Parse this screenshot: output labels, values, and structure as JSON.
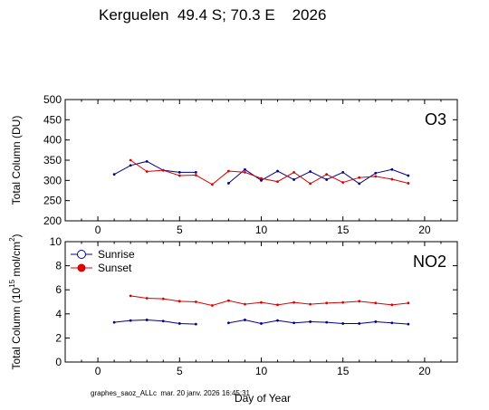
{
  "title": "Kerguelen  49.4 S; 70.3 E    2026",
  "footer": "graphes_saoz_ALLc  mar. 20 janv. 2026 16:45:31",
  "xlabel": "Day of Year",
  "colors": {
    "sunrise": "#00008b",
    "sunset": "#dc0000",
    "axis": "#000000"
  },
  "chart_data": [
    {
      "type": "line",
      "panel_label": "O3",
      "ylabel": "Total Column  (DU)",
      "xlim": [
        -2,
        22
      ],
      "ylim": [
        200,
        500
      ],
      "xticks": [
        "0",
        "5",
        "10",
        "15",
        "20"
      ],
      "yticks": [
        "200",
        "250",
        "300",
        "350",
        "400",
        "450",
        "500"
      ],
      "series": [
        {
          "key": "sunrise",
          "x": [
            1,
            2,
            3,
            4,
            5,
            6,
            8,
            9,
            10,
            11,
            12,
            13,
            14,
            15,
            16,
            17,
            18,
            19
          ],
          "y": [
            315,
            337,
            347,
            325,
            320,
            320,
            293,
            327,
            300,
            323,
            302,
            322,
            302,
            320,
            292,
            318,
            327,
            312
          ]
        },
        {
          "key": "sunset",
          "x": [
            2,
            3,
            4,
            5,
            6,
            7,
            8,
            9,
            10,
            11,
            12,
            13,
            14,
            15,
            16,
            17,
            18,
            19
          ],
          "y": [
            350,
            322,
            325,
            312,
            313,
            290,
            323,
            320,
            305,
            297,
            320,
            292,
            315,
            295,
            307,
            310,
            303,
            293
          ]
        }
      ]
    },
    {
      "type": "line",
      "panel_label": "NO2",
      "ylabel_parts": [
        "Total Column (10",
        "15",
        " mol/cm",
        "2",
        ")"
      ],
      "xlim": [
        -2,
        22
      ],
      "ylim": [
        0,
        10
      ],
      "xticks": [
        "0",
        "5",
        "10",
        "15",
        "20"
      ],
      "yticks": [
        "0",
        "2",
        "4",
        "6",
        "8",
        "10"
      ],
      "legend": {
        "position": "top-left",
        "entries": [
          {
            "key": "sunrise",
            "label": "Sunrise"
          },
          {
            "key": "sunset",
            "label": "Sunset"
          }
        ]
      },
      "series": [
        {
          "key": "sunrise",
          "x": [
            1,
            2,
            3,
            4,
            5,
            6,
            8,
            9,
            10,
            11,
            12,
            13,
            14,
            15,
            16,
            17,
            18,
            19
          ],
          "y": [
            3.3,
            3.45,
            3.5,
            3.4,
            3.2,
            3.15,
            3.25,
            3.5,
            3.2,
            3.45,
            3.25,
            3.35,
            3.3,
            3.2,
            3.2,
            3.35,
            3.25,
            3.15
          ]
        },
        {
          "key": "sunset",
          "x": [
            2,
            3,
            4,
            5,
            6,
            7,
            8,
            9,
            10,
            11,
            12,
            13,
            14,
            15,
            16,
            17,
            18,
            19
          ],
          "y": [
            5.5,
            5.3,
            5.25,
            5.05,
            5.0,
            4.7,
            5.1,
            4.8,
            4.95,
            4.75,
            4.95,
            4.8,
            4.9,
            4.95,
            5.05,
            4.9,
            4.75,
            4.9
          ]
        }
      ]
    }
  ]
}
